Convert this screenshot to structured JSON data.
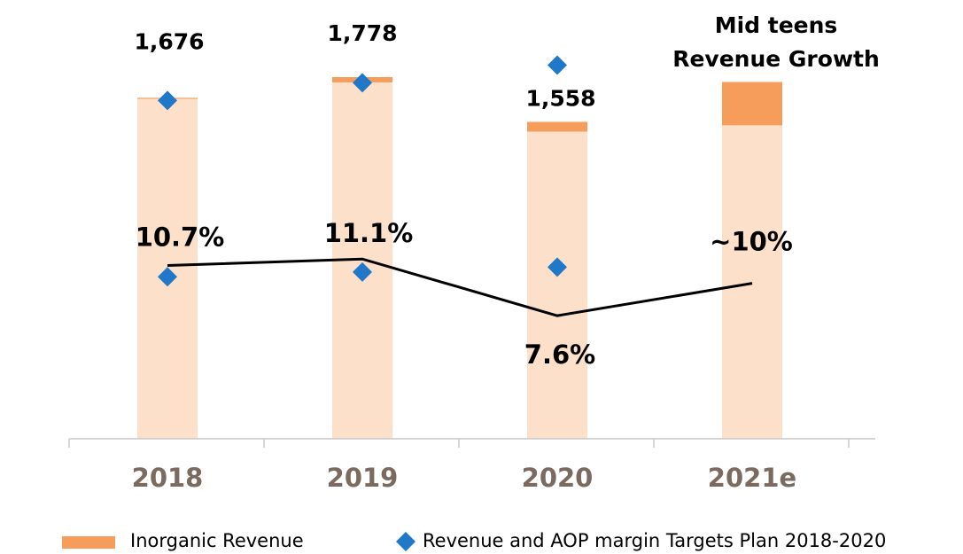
{
  "chart_data": {
    "type": "bar",
    "categories": [
      "2018",
      "2019",
      "2020",
      "2021e"
    ],
    "ylim": [
      0,
      2070
    ],
    "y2lim": [
      0,
      26
    ],
    "series": [
      {
        "color": "#fde0c9",
        "values": [
          1671,
          1752,
          1510,
          1541
        ]
      },
      {
        "name": "Inorganic Revenue",
        "color": "#f79d5c",
        "values": [
          5,
          26,
          48,
          213
        ]
      }
    ],
    "totals": {
      "values": [
        1676,
        1778,
        1558,
        null
      ],
      "value_labels": [
        "1,676",
        "1,778",
        "1,558",
        null
      ]
    },
    "margin": {
      "axis": "y2",
      "color": "#000000",
      "values": [
        10.7,
        11.1,
        7.6,
        9.6
      ],
      "value_labels": [
        "10.7%",
        "11.1%",
        "7.6%",
        "~10%"
      ]
    },
    "targets": {
      "name": "Revenue and AOP margin Targets Plan 2018-2020",
      "color": "#1f78c8",
      "values": [
        1663,
        1750,
        1837,
        null
      ],
      "margin_values": [
        10.0,
        10.3,
        10.6,
        null
      ]
    },
    "annotation": [
      "Mid teens",
      "Revenue Growth"
    ]
  }
}
